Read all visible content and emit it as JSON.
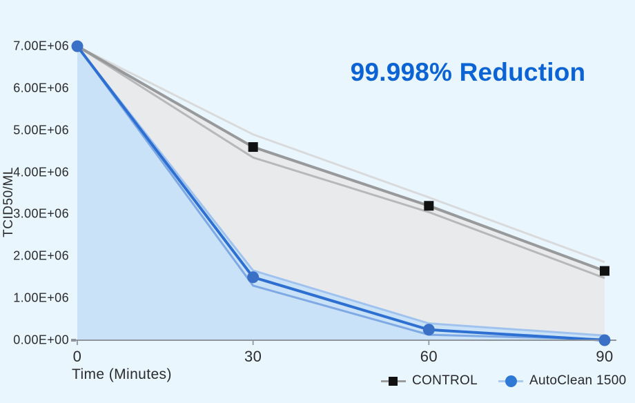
{
  "background_color": "#e9f6fd",
  "chart_data": {
    "type": "line",
    "title": "99.998% Reduction",
    "title_color": "#0c64d4",
    "xlabel": "Time (Minutes)",
    "ylabel": "TCID50/ML",
    "x": [
      0,
      30,
      60,
      90
    ],
    "x_tick_labels": [
      "0",
      "30",
      "60",
      "90"
    ],
    "y_tick_labels": [
      "7.00E+06",
      "6.00E+06",
      "5.00E+06",
      "4.00E+06",
      "3.00E+06",
      "2.00E+06",
      "1.00E+06",
      "0.00E+00"
    ],
    "ylim": [
      0,
      7000000
    ],
    "grid": false,
    "legend_position": "bottom",
    "axis_color": "#8d949b",
    "tick_color": "#9aa0a4",
    "series": [
      {
        "name": "CONTROL",
        "values": [
          7000000,
          4600000,
          3200000,
          1650000
        ],
        "band_upper": [
          7000000,
          4900000,
          3400000,
          1860000
        ],
        "band_lower": [
          7000000,
          4350000,
          3050000,
          1480000
        ],
        "line_color": "#98999b",
        "band_upper_color": "#d9dadb",
        "band_lower_color": "#b7b8ba",
        "fill_color": "#e9eaeb",
        "marker": "square",
        "marker_color": "#111111",
        "legend_line_color": "#9b9b9b"
      },
      {
        "name": "AutoClean 1500",
        "values": [
          7000000,
          1500000,
          250000,
          140
        ],
        "band_upper": [
          7000000,
          1660000,
          400000,
          110000
        ],
        "band_lower": [
          7000000,
          1300000,
          130000,
          20000
        ],
        "line_color": "#2e6fd2",
        "band_upper_color": "#a0c2ee",
        "band_lower_color": "#7fa9e4",
        "fill_color": "#c9e2f7",
        "marker": "circle",
        "marker_color": "#3a70c6",
        "legend_line_color": "#a9c9f0",
        "legend_marker_color": "#2e78d6"
      }
    ]
  }
}
